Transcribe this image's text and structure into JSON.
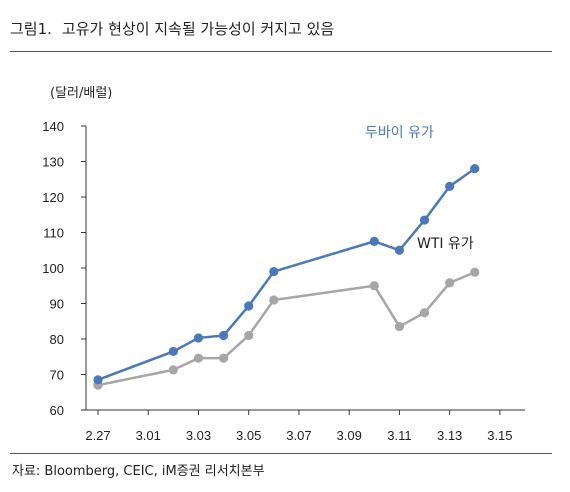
{
  "header": {
    "figure_number": "그림1.",
    "title": "고유가 현상이 지속될 가능성이 커지고 있음"
  },
  "footer": {
    "source": "자료: Bloomberg, CEIC, iM증권 리서치본부"
  },
  "chart_data": {
    "type": "line",
    "title": "고유가 현상이 지속될 가능성이 커지고 있음",
    "ylabel": "(달러/배럴)",
    "xlabel": "",
    "categories": [
      "2.27",
      "3.01",
      "3.03",
      "3.05",
      "3.07",
      "3.09",
      "3.11",
      "3.13",
      "3.15"
    ],
    "x_tick_values": [
      0,
      2,
      4,
      6,
      8,
      10,
      12,
      14,
      16
    ],
    "ylim": [
      60,
      140
    ],
    "yticks": [
      60,
      70,
      80,
      90,
      100,
      110,
      120,
      130,
      140
    ],
    "xlim": [
      0,
      17
    ],
    "grid": false,
    "legend": "inline labels",
    "series": [
      {
        "name": "두바이 유가",
        "color": "#4A78BB",
        "x": [
          0,
          3,
          4,
          5,
          6,
          7,
          11,
          12,
          13,
          14,
          15
        ],
        "y": [
          68.5,
          76.5,
          80.3,
          81.0,
          89.3,
          99.0,
          107.5,
          105.0,
          113.5,
          123.0,
          128.0
        ]
      },
      {
        "name": "WTI 유가",
        "color": "#A6A6A6",
        "x": [
          0,
          3,
          4,
          5,
          6,
          7,
          11,
          12,
          13,
          14,
          15
        ],
        "y": [
          67.0,
          71.3,
          74.6,
          74.6,
          81.0,
          91.0,
          95.0,
          83.5,
          87.4,
          95.8,
          98.8
        ]
      }
    ]
  }
}
